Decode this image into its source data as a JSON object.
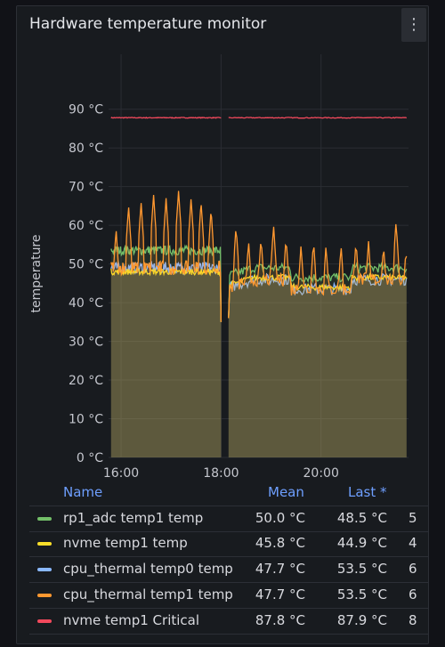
{
  "panel": {
    "title": "Hardware temperature monitor",
    "menu_icon": "kebab-menu-icon"
  },
  "legend": {
    "headers": {
      "name": "Name",
      "mean": "Mean",
      "last": "Last *"
    },
    "rows": [
      {
        "name": "rp1_adc temp1 temp",
        "mean": "50.0 °C",
        "last": "48.5 °C",
        "extra": "5",
        "color": "#73bf69"
      },
      {
        "name": "nvme temp1 temp",
        "mean": "45.8 °C",
        "last": "44.9 °C",
        "extra": "4",
        "color": "#fade2a"
      },
      {
        "name": "cpu_thermal temp0 temp",
        "mean": "47.7 °C",
        "last": "53.5 °C",
        "extra": "6",
        "color": "#8ab8ff"
      },
      {
        "name": "cpu_thermal temp1 temp",
        "mean": "47.7 °C",
        "last": "53.5 °C",
        "extra": "6",
        "color": "#ff9830"
      },
      {
        "name": "nvme temp1 Critical",
        "mean": "87.8 °C",
        "last": "87.9 °C",
        "extra": "8",
        "color": "#f2495c"
      }
    ]
  },
  "chart_data": {
    "type": "line",
    "ylabel": "temperature",
    "ylim": [
      0,
      95
    ],
    "yticks": [
      "0 °C",
      "10 °C",
      "20 °C",
      "30 °C",
      "40 °C",
      "50 °C",
      "60 °C",
      "70 °C",
      "80 °C",
      "90 °C"
    ],
    "xlim": [
      15.75,
      21.75
    ],
    "xticks": [
      {
        "x": 16,
        "label": "16:00"
      },
      {
        "x": 18,
        "label": "18:00"
      },
      {
        "x": 20,
        "label": "20:00"
      }
    ],
    "gap": [
      18.0,
      18.15
    ],
    "grid": true,
    "fill": true,
    "series": [
      {
        "name": "nvme temp1 Critical",
        "color": "#f2495c",
        "base": 87.8,
        "noise": 0.1,
        "spikes": []
      },
      {
        "name": "rp1_adc temp1 temp",
        "color": "#73bf69",
        "base": 53.5,
        "base2": 47,
        "noise": 1.2,
        "spikes": []
      },
      {
        "name": "cpu_thermal temp0 temp",
        "color": "#8ab8ff",
        "base": 49,
        "base2": 44,
        "noise": 1.5,
        "spikes": []
      },
      {
        "name": "nvme temp1 temp",
        "color": "#fade2a",
        "base": 48,
        "base2": 44.5,
        "noise": 0.8,
        "spikes": []
      },
      {
        "name": "cpu_thermal temp1 temp",
        "color": "#ff9830",
        "base": 49,
        "base2": 44,
        "noise": 1.8,
        "spikes": [
          [
            15.9,
            59
          ],
          [
            16.15,
            65
          ],
          [
            16.4,
            66
          ],
          [
            16.65,
            68
          ],
          [
            16.9,
            67
          ],
          [
            17.15,
            69
          ],
          [
            17.4,
            67
          ],
          [
            17.6,
            66
          ],
          [
            17.8,
            64
          ],
          [
            18.3,
            60
          ],
          [
            18.55,
            56
          ],
          [
            18.8,
            57
          ],
          [
            19.05,
            60
          ],
          [
            19.3,
            57
          ],
          [
            19.6,
            55
          ],
          [
            19.85,
            56
          ],
          [
            20.1,
            55
          ],
          [
            20.4,
            55
          ],
          [
            20.7,
            56
          ],
          [
            20.95,
            56
          ],
          [
            21.25,
            55
          ],
          [
            21.5,
            61
          ],
          [
            21.7,
            54
          ]
        ]
      }
    ]
  }
}
